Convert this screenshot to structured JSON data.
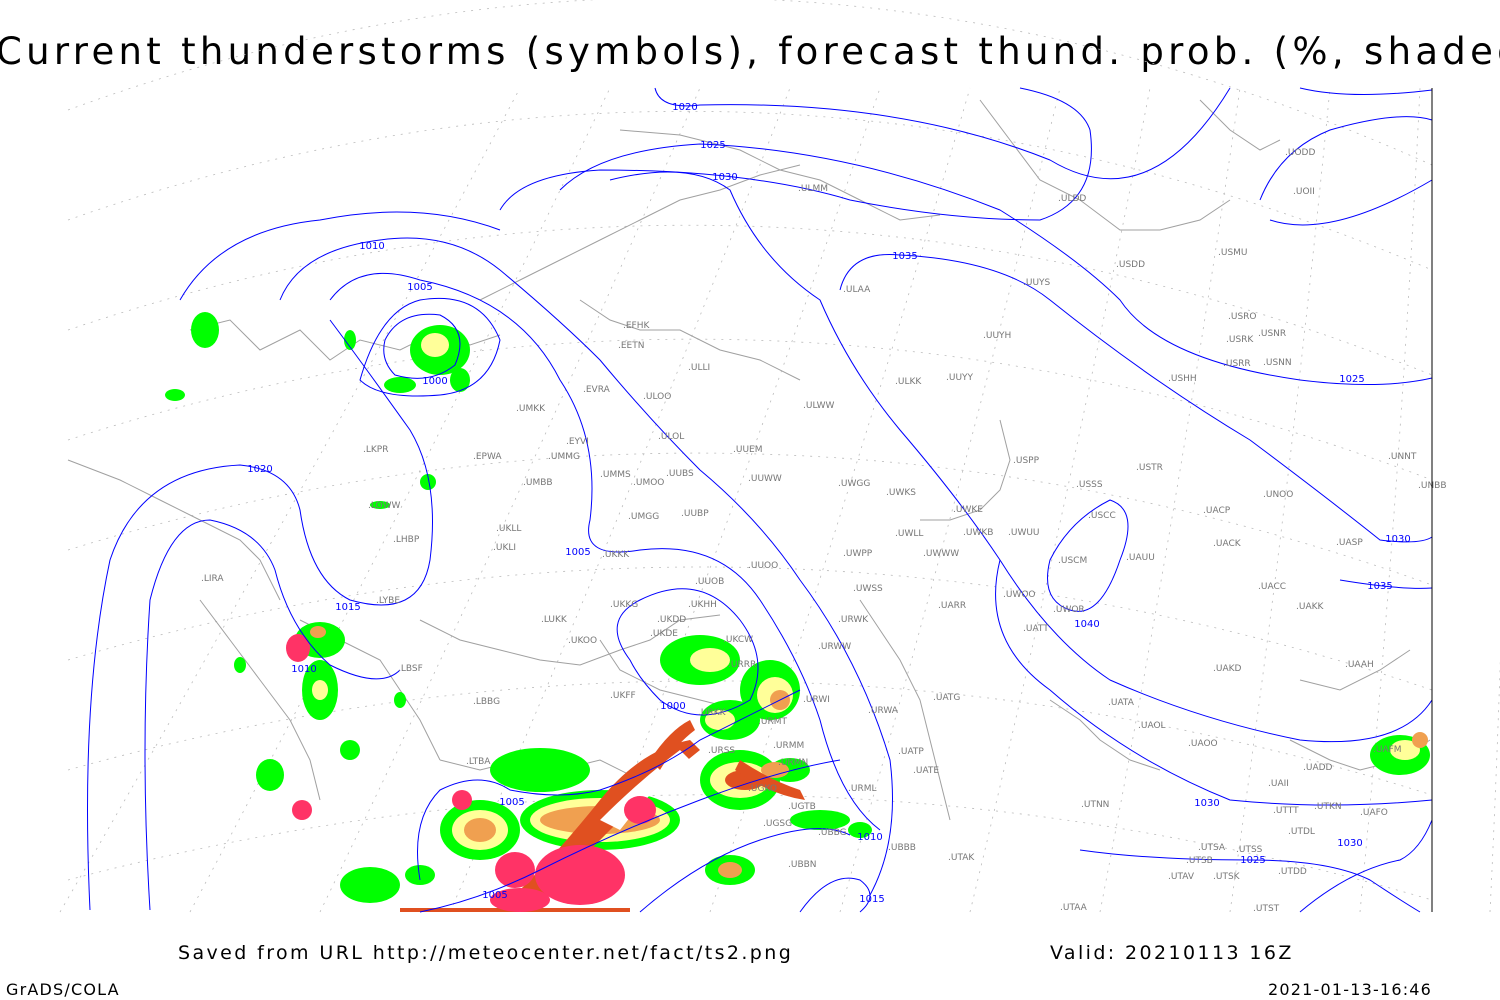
{
  "title": "Current thunderstorms (symbols), forecast thund. prob. (%, shaded)",
  "footer": {
    "source": "Saved from URL http://meteocenter.net/fact/ts2.png",
    "valid": "Valid: 20210113 16Z",
    "software": "GrADS/COLA",
    "timestamp": "2021-01-13-16:46"
  },
  "colors": {
    "isobar": "#0000ff",
    "coastline": "#a0a0a0",
    "prob_low": "#00ff00",
    "prob_mid": "#ffff99",
    "prob_high": "#f0a050",
    "prob_very_high": "#e05020",
    "thunderstorm_symbols": "#ff3366"
  },
  "isobar_labels": [
    "1020",
    "1025",
    "1030",
    "1035",
    "1010",
    "1005",
    "1000",
    "1020",
    "1015",
    "1010",
    "1005",
    "1000",
    "1005",
    "1005",
    "1010",
    "1015",
    "1040",
    "1030",
    "1025",
    "1030",
    "1025",
    "1030",
    "1035"
  ],
  "stations": [
    "ULMM",
    "ULDD",
    "UODD",
    "UOII",
    "USMU",
    "USDD",
    "ULAA",
    "UUYS",
    "USRO",
    "USNR",
    "USRK",
    "USRR",
    "USNN",
    "EFHK",
    "EETN",
    "ULLI",
    "USHH",
    "UUYH",
    "ULKK",
    "UUYY",
    "EVRA",
    "ULOO",
    "UMKK",
    "ULWW",
    "EYVI",
    "ULOL",
    "UUEM",
    "EPWA",
    "UMMG",
    "UMMS",
    "UUBS",
    "UMOO",
    "UUWW",
    "UMBB",
    "USPP",
    "USTR",
    "UNNT",
    "UNBB",
    "LKPR",
    "UWGG",
    "UWKS",
    "USSS",
    "UNOO",
    "UWKE",
    "UACP",
    "USCC",
    "UMGG",
    "UUBP",
    "LOWW",
    "UKLL",
    "UWLL",
    "UWKB",
    "UWUU",
    "UACK",
    "UASP",
    "UKLI",
    "LHBP",
    "UKKK",
    "UWPP",
    "UWWW",
    "USCM",
    "UAUU",
    "UUOO",
    "LIRA",
    "UUOB",
    "UWSS",
    "UACC",
    "UWOO",
    "LYBE",
    "LUKK",
    "UKKG",
    "UKDD",
    "UKHH",
    "UARR",
    "UWOR",
    "UAKK",
    "UATT",
    "URWK",
    "UKOO",
    "UKDE",
    "UKCW",
    "URWW",
    "URRR",
    "LBSF",
    "UAKD",
    "UAAH",
    "UKFF",
    "URWI",
    "UATG",
    "URKK",
    "LBBG",
    "UATA",
    "URMT",
    "URWA",
    "UAOL",
    "URSS",
    "URMM",
    "UATP",
    "UAOO",
    "URMN",
    "UATE",
    "UAFM",
    "UADD",
    "UGKO",
    "URML",
    "UAII",
    "UTTT",
    "UTKN",
    "UAFO",
    "UGTB",
    "UTNN",
    "UBBG",
    "UGSG",
    "UTDL",
    "UBBB",
    "UTSA",
    "UTSS",
    "UTAK",
    "UTSB",
    "UBBN",
    "UTDD",
    "UTAV",
    "UTSK",
    "UTAA",
    "UTST",
    "LTBA"
  ]
}
